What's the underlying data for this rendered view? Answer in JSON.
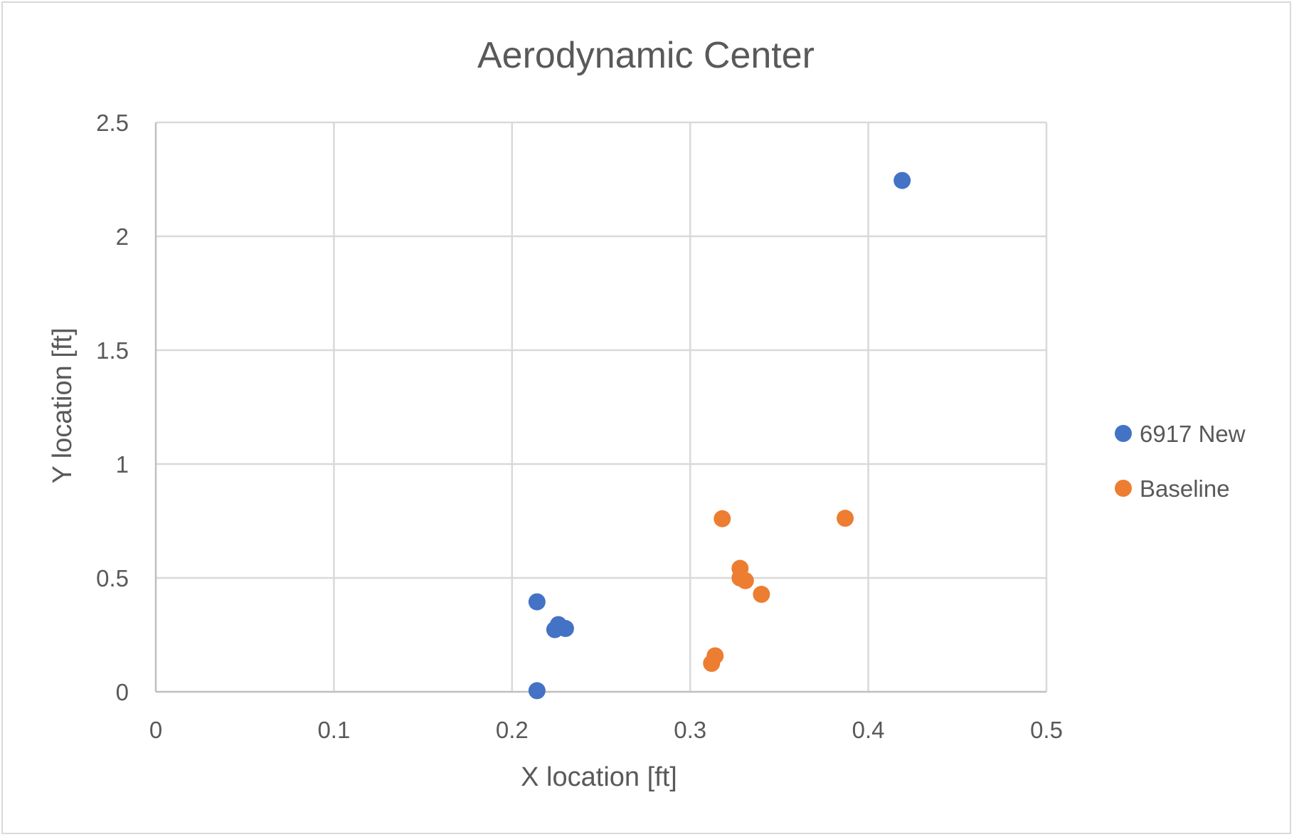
{
  "chart_data": {
    "type": "scatter",
    "title": "Aerodynamic Center",
    "xlabel": "X location [ft]",
    "ylabel": "Y location [ft]",
    "xlim": [
      0,
      0.5
    ],
    "ylim": [
      0,
      2.5
    ],
    "x_ticks": [
      "0",
      "0.1",
      "0.2",
      "0.3",
      "0.4",
      "0.5"
    ],
    "y_ticks": [
      "0",
      "0.5",
      "1",
      "1.5",
      "2",
      "2.5"
    ],
    "x_tick_values": [
      0,
      0.1,
      0.2,
      0.3,
      0.4,
      0.5
    ],
    "y_tick_values": [
      0,
      0.5,
      1,
      1.5,
      2,
      2.5
    ],
    "grid": true,
    "legend_position": "right",
    "series": [
      {
        "name": "6917 New",
        "color": "#4472C4",
        "points": [
          {
            "x": 0.419,
            "y": 2.245
          },
          {
            "x": 0.214,
            "y": 0.395
          },
          {
            "x": 0.226,
            "y": 0.295
          },
          {
            "x": 0.23,
            "y": 0.278
          },
          {
            "x": 0.224,
            "y": 0.273
          },
          {
            "x": 0.227,
            "y": 0.285
          },
          {
            "x": 0.214,
            "y": 0.005
          }
        ]
      },
      {
        "name": "Baseline",
        "color": "#ED7D31",
        "points": [
          {
            "x": 0.318,
            "y": 0.76
          },
          {
            "x": 0.387,
            "y": 0.762
          },
          {
            "x": 0.328,
            "y": 0.542
          },
          {
            "x": 0.328,
            "y": 0.5
          },
          {
            "x": 0.331,
            "y": 0.488
          },
          {
            "x": 0.34,
            "y": 0.428
          },
          {
            "x": 0.314,
            "y": 0.158
          },
          {
            "x": 0.312,
            "y": 0.125
          }
        ]
      }
    ]
  }
}
